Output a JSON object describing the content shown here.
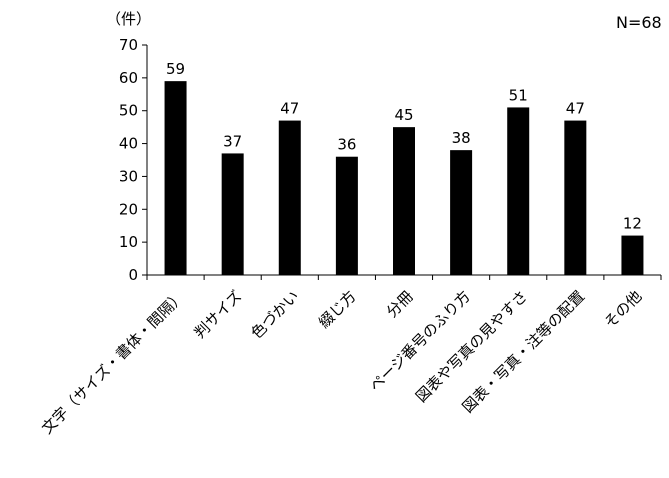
{
  "chart_data": {
    "type": "bar",
    "title": "",
    "xlabel": "",
    "ylabel": "",
    "y_unit_label": "（件）",
    "sample_size_label": "N=68",
    "categories": [
      "文字（サイズ・書体・間隔）",
      "判サイズ",
      "色づかい",
      "綴じ方",
      "分冊",
      "ページ番号のふり方",
      "図表や写真の見やすさ",
      "図表・写真・注等の配置",
      "その他"
    ],
    "values": [
      59,
      37,
      47,
      36,
      45,
      38,
      51,
      47,
      12
    ],
    "ylim": [
      0,
      70
    ],
    "yticks": [
      0,
      10,
      20,
      30,
      40,
      50,
      60,
      70
    ],
    "grid": false,
    "legend": "none",
    "bar_color": "#000000"
  }
}
